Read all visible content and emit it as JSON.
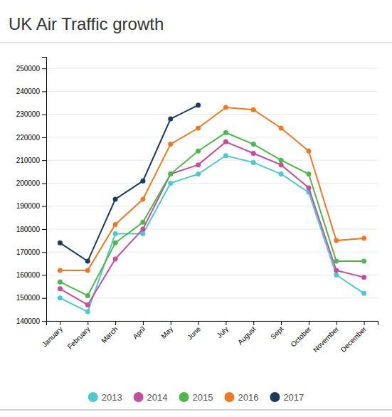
{
  "chart_data": {
    "type": "line",
    "title": "UK Air Traffic growth",
    "categories": [
      "January",
      "February",
      "March",
      "April",
      "May",
      "June",
      "July",
      "August",
      "Sept",
      "October",
      "November",
      "December"
    ],
    "series": [
      {
        "name": "2013",
        "color": "#4DC8D0",
        "values": [
          150000,
          144000,
          178000,
          178000,
          200000,
          204000,
          212000,
          209000,
          204000,
          196000,
          160000,
          152000
        ]
      },
      {
        "name": "2014",
        "color": "#C74B9E",
        "values": [
          154000,
          147000,
          167000,
          180000,
          204000,
          208000,
          218000,
          213000,
          208000,
          198000,
          162000,
          159000
        ]
      },
      {
        "name": "2015",
        "color": "#4DB848",
        "values": [
          157000,
          151000,
          174000,
          183000,
          204000,
          214000,
          222000,
          217000,
          210000,
          204000,
          166000,
          166000
        ]
      },
      {
        "name": "2016",
        "color": "#F07820",
        "values": [
          162000,
          162000,
          182000,
          193000,
          217000,
          224000,
          233000,
          232000,
          224000,
          214000,
          175000,
          176000
        ]
      },
      {
        "name": "2017",
        "color": "#1B3A5C",
        "values": [
          174000,
          166000,
          193000,
          201000,
          228000,
          234000,
          null,
          null,
          null,
          null,
          null,
          null
        ]
      }
    ],
    "ylim": [
      140000,
      255000
    ],
    "yticks": [
      140000,
      150000,
      160000,
      170000,
      180000,
      190000,
      200000,
      210000,
      220000,
      230000,
      240000,
      250000
    ],
    "grid": true,
    "legend": "bottom",
    "marker": "circle"
  }
}
